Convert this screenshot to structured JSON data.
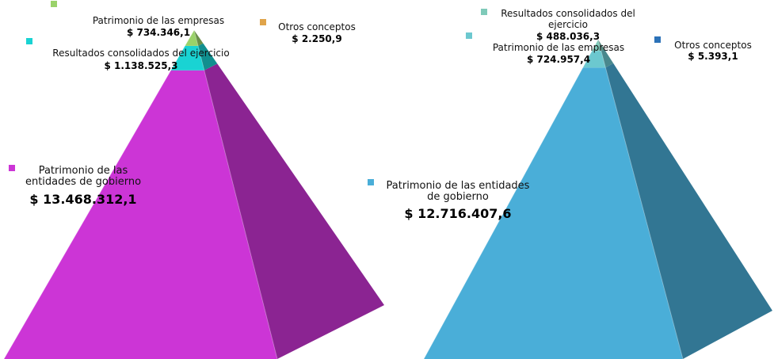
{
  "chart_data": [
    {
      "type": "pyramid",
      "categories": [
        "Patrimonio de las entidades de gobierno",
        "Resultados consolidados del ejercicio",
        "Patrimonio de las empresas",
        "Otros conceptos"
      ],
      "values": [
        13468312.1,
        1138525.3,
        734346.1,
        2250.9
      ],
      "value_labels": [
        "$ 13.468.312,1",
        "$ 1.138.525,3",
        "$ 734.346,1",
        "$ 2.250,9"
      ],
      "colors": [
        "#cc35d6",
        "#19d3d3",
        "#9ad26a",
        "#e0a44a"
      ]
    },
    {
      "type": "pyramid",
      "categories": [
        "Patrimonio de las entidades de gobierno",
        "Patrimonio de las empresas",
        "Resultados consolidados del ejercicio",
        "Otros conceptos"
      ],
      "values": [
        12716407.6,
        724957.4,
        488036.3,
        5393.1
      ],
      "value_labels": [
        "$ 12.716.407,6",
        "$ 724.957,4",
        "$ 488.036,3",
        "$ 5.393,1"
      ],
      "colors": [
        "#4aaed8",
        "#6cc8cf",
        "#7fcab9",
        "#2c72b8"
      ]
    }
  ]
}
